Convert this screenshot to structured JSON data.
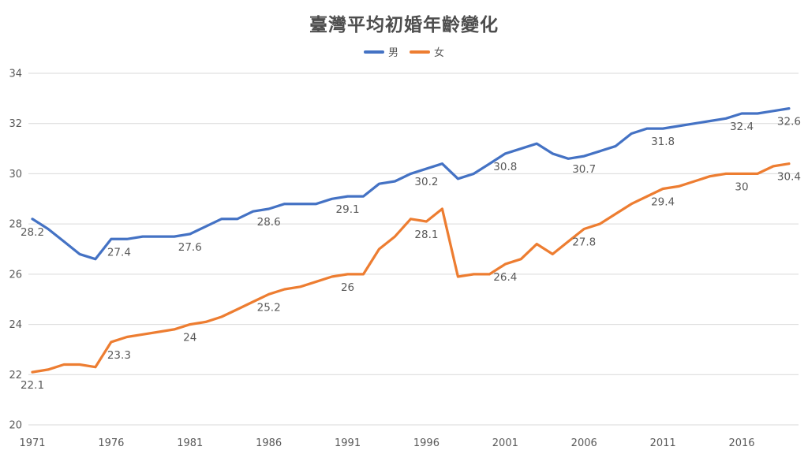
{
  "title": "臺灣平均初婚年齡變化",
  "legend": {
    "male_label": "男",
    "female_label": "女"
  },
  "colors": {
    "male": "#4472C4",
    "female": "#ED7D31",
    "gridline": "#D9D9D9",
    "axis_text": "#595959",
    "title_text": "#4d4d4d"
  },
  "chart_data": {
    "type": "line",
    "title": "臺灣平均初婚年齡變化",
    "xlabel": "",
    "ylabel": "",
    "ylim": [
      20,
      34
    ],
    "yticks": [
      20,
      22,
      24,
      26,
      28,
      30,
      32,
      34
    ],
    "xticks": [
      1971,
      1976,
      1981,
      1986,
      1991,
      1996,
      2001,
      2006,
      2011,
      2016
    ],
    "grid": "horizontal",
    "legend_position": "top",
    "x": [
      1971,
      1972,
      1973,
      1974,
      1975,
      1976,
      1977,
      1978,
      1979,
      1980,
      1981,
      1982,
      1983,
      1984,
      1985,
      1986,
      1987,
      1988,
      1989,
      1990,
      1991,
      1992,
      1993,
      1994,
      1995,
      1996,
      1997,
      1998,
      1999,
      2000,
      2001,
      2002,
      2003,
      2004,
      2005,
      2006,
      2007,
      2008,
      2009,
      2010,
      2011,
      2012,
      2013,
      2014,
      2015,
      2016,
      2017,
      2018,
      2019
    ],
    "series": [
      {
        "name": "男",
        "color": "#4472C4",
        "values": [
          28.2,
          27.8,
          27.3,
          26.8,
          26.6,
          27.4,
          27.4,
          27.5,
          27.5,
          27.5,
          27.6,
          27.9,
          28.2,
          28.2,
          28.5,
          28.6,
          28.8,
          28.8,
          28.8,
          29.0,
          29.1,
          29.1,
          29.6,
          29.7,
          30.0,
          30.2,
          30.4,
          29.8,
          30.0,
          30.4,
          30.8,
          31.0,
          31.2,
          30.8,
          30.6,
          30.7,
          30.9,
          31.1,
          31.6,
          31.8,
          31.8,
          31.9,
          32.0,
          32.1,
          32.2,
          32.4,
          32.4,
          32.5,
          32.6
        ]
      },
      {
        "name": "女",
        "color": "#ED7D31",
        "values": [
          22.1,
          22.2,
          22.4,
          22.4,
          22.3,
          23.3,
          23.5,
          23.6,
          23.7,
          23.8,
          24.0,
          24.1,
          24.3,
          24.6,
          24.9,
          25.2,
          25.4,
          25.5,
          25.7,
          25.9,
          26.0,
          26.0,
          27.0,
          27.5,
          28.2,
          28.1,
          28.6,
          25.9,
          26.0,
          26.0,
          26.4,
          26.6,
          27.2,
          26.8,
          27.3,
          27.8,
          28.0,
          28.4,
          28.8,
          29.1,
          29.4,
          29.5,
          29.7,
          29.9,
          30.0,
          30.0,
          30.0,
          30.3,
          30.4
        ]
      }
    ],
    "data_labels": {
      "years": [
        1971,
        1976,
        1981,
        1986,
        1991,
        1996,
        2001,
        2006,
        2011,
        2016,
        2019
      ],
      "male": [
        "28.2",
        "27.4",
        "27.6",
        "28.6",
        "29.1",
        "30.2",
        "30.8",
        "30.7",
        "31.8",
        "32.4",
        "32.6"
      ],
      "female": [
        "22.1",
        "23.3",
        "24",
        "25.2",
        "26",
        "28.1",
        "26.4",
        "27.8",
        "29.4",
        "30",
        "30.4"
      ]
    }
  }
}
